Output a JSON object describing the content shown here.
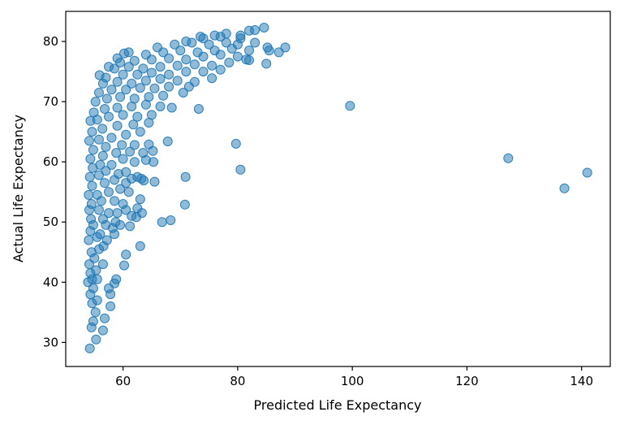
{
  "chart_data": {
    "type": "scatter",
    "title": "",
    "xlabel": "Predicted Life Expectancy",
    "ylabel": "Actual Life Expectancy",
    "xlim": [
      50,
      145
    ],
    "ylim": [
      26,
      85
    ],
    "x_ticks": [
      60,
      80,
      100,
      120,
      140
    ],
    "y_ticks": [
      30,
      40,
      50,
      60,
      70,
      80
    ],
    "grid": false,
    "legend": "none",
    "marker_color": "#1f77b4",
    "marker_alpha": 0.5,
    "points": [
      [
        54.2,
        29.0
      ],
      [
        55.3,
        30.5
      ],
      [
        54.5,
        32.5
      ],
      [
        56.5,
        32.0
      ],
      [
        54.8,
        33.5
      ],
      [
        56.8,
        34.0
      ],
      [
        55.2,
        35.0
      ],
      [
        57.8,
        36.0
      ],
      [
        54.6,
        36.5
      ],
      [
        55.5,
        37.0
      ],
      [
        54.3,
        38.0
      ],
      [
        57.8,
        38.0
      ],
      [
        54.8,
        39.0
      ],
      [
        57.5,
        39.0
      ],
      [
        53.9,
        40.0
      ],
      [
        54.6,
        40.5
      ],
      [
        55.5,
        40.5
      ],
      [
        58.8,
        40.5
      ],
      [
        58.5,
        39.8
      ],
      [
        54.3,
        41.5
      ],
      [
        55.3,
        42.0
      ],
      [
        60.2,
        42.8
      ],
      [
        54.1,
        43.0
      ],
      [
        55.0,
        44.0
      ],
      [
        56.5,
        43.0
      ],
      [
        60.5,
        44.6
      ],
      [
        54.5,
        45.0
      ],
      [
        55.8,
        45.5
      ],
      [
        56.6,
        46.0
      ],
      [
        63.0,
        46.0
      ],
      [
        54.0,
        47.0
      ],
      [
        55.5,
        47.5
      ],
      [
        57.2,
        47.0
      ],
      [
        54.3,
        48.5
      ],
      [
        56.0,
        48.0
      ],
      [
        58.5,
        48.0
      ],
      [
        58.2,
        49.0
      ],
      [
        54.8,
        49.5
      ],
      [
        57.0,
        49.5
      ],
      [
        59.5,
        49.5
      ],
      [
        61.2,
        49.3
      ],
      [
        54.4,
        50.5
      ],
      [
        56.5,
        50.5
      ],
      [
        58.7,
        50.0
      ],
      [
        62.3,
        50.8
      ],
      [
        66.8,
        50.0
      ],
      [
        68.3,
        50.3
      ],
      [
        54.1,
        52.0
      ],
      [
        55.8,
        52.0
      ],
      [
        57.5,
        51.5
      ],
      [
        59.0,
        51.5
      ],
      [
        60.5,
        52.0
      ],
      [
        61.5,
        51.0
      ],
      [
        63.3,
        51.5
      ],
      [
        54.5,
        53.0
      ],
      [
        56.2,
        53.5
      ],
      [
        58.5,
        53.5
      ],
      [
        60.0,
        53.0
      ],
      [
        62.5,
        52.3
      ],
      [
        70.8,
        52.9
      ],
      [
        54.0,
        54.5
      ],
      [
        55.5,
        54.5
      ],
      [
        57.5,
        55.0
      ],
      [
        59.5,
        55.5
      ],
      [
        61.0,
        55.0
      ],
      [
        63.0,
        53.8
      ],
      [
        54.6,
        56.0
      ],
      [
        56.8,
        56.5
      ],
      [
        58.5,
        57.0
      ],
      [
        60.5,
        56.5
      ],
      [
        62.5,
        57.5
      ],
      [
        65.5,
        56.7
      ],
      [
        54.2,
        57.5
      ],
      [
        55.8,
        57.8
      ],
      [
        57.0,
        58.5
      ],
      [
        59.2,
        58.0
      ],
      [
        60.5,
        58.3
      ],
      [
        61.5,
        57.2
      ],
      [
        63.2,
        57.2
      ],
      [
        63.6,
        56.9
      ],
      [
        54.7,
        59.0
      ],
      [
        56.0,
        59.5
      ],
      [
        58.0,
        59.5
      ],
      [
        60.0,
        60.5
      ],
      [
        62.0,
        60.0
      ],
      [
        64.0,
        60.3
      ],
      [
        65.3,
        60.0
      ],
      [
        70.9,
        57.5
      ],
      [
        80.5,
        58.7
      ],
      [
        54.3,
        60.5
      ],
      [
        56.5,
        61.0
      ],
      [
        58.8,
        61.5
      ],
      [
        61.2,
        61.7
      ],
      [
        63.5,
        61.5
      ],
      [
        65.2,
        61.8
      ],
      [
        54.8,
        62.0
      ],
      [
        57.0,
        62.5
      ],
      [
        59.8,
        62.8
      ],
      [
        62.0,
        62.8
      ],
      [
        64.5,
        62.9
      ],
      [
        67.8,
        63.4
      ],
      [
        79.7,
        63.0
      ],
      [
        54.1,
        63.5
      ],
      [
        55.8,
        63.7
      ],
      [
        58.0,
        64.0
      ],
      [
        60.5,
        64.5
      ],
      [
        63.0,
        65.0
      ],
      [
        54.6,
        65.0
      ],
      [
        56.4,
        65.5
      ],
      [
        59.0,
        66.0
      ],
      [
        61.8,
        66.2
      ],
      [
        64.5,
        66.5
      ],
      [
        54.3,
        66.8
      ],
      [
        55.5,
        67.0
      ],
      [
        57.5,
        67.5
      ],
      [
        60.0,
        67.8
      ],
      [
        62.5,
        67.5
      ],
      [
        65.0,
        67.8
      ],
      [
        54.9,
        68.2
      ],
      [
        56.8,
        68.8
      ],
      [
        59.0,
        69.0
      ],
      [
        61.5,
        69.2
      ],
      [
        64.0,
        69.5
      ],
      [
        66.5,
        69.2
      ],
      [
        68.5,
        69.0
      ],
      [
        73.2,
        68.8
      ],
      [
        99.6,
        69.3
      ],
      [
        55.2,
        70.0
      ],
      [
        57.2,
        70.5
      ],
      [
        59.5,
        70.8
      ],
      [
        62.0,
        70.5
      ],
      [
        64.5,
        70.8
      ],
      [
        67.0,
        71.0
      ],
      [
        70.5,
        71.5
      ],
      [
        55.8,
        71.5
      ],
      [
        58.0,
        72.0
      ],
      [
        60.5,
        72.0
      ],
      [
        63.0,
        72.3
      ],
      [
        65.5,
        72.2
      ],
      [
        68.0,
        72.5
      ],
      [
        71.5,
        72.5
      ],
      [
        56.5,
        73.0
      ],
      [
        59.0,
        73.3
      ],
      [
        61.5,
        73.0
      ],
      [
        64.0,
        73.5
      ],
      [
        66.5,
        73.8
      ],
      [
        69.5,
        73.5
      ],
      [
        72.5,
        73.3
      ],
      [
        75.5,
        73.9
      ],
      [
        57.0,
        74.0
      ],
      [
        60.0,
        74.5
      ],
      [
        62.5,
        74.5
      ],
      [
        65.0,
        74.8
      ],
      [
        68.0,
        74.5
      ],
      [
        71.0,
        75.0
      ],
      [
        74.0,
        75.0
      ],
      [
        77.0,
        75.3
      ],
      [
        55.9,
        74.4
      ],
      [
        58.5,
        75.5
      ],
      [
        61.0,
        75.8
      ],
      [
        63.5,
        75.5
      ],
      [
        66.5,
        75.8
      ],
      [
        69.5,
        76.0
      ],
      [
        72.5,
        76.2
      ],
      [
        75.5,
        76.0
      ],
      [
        78.5,
        76.5
      ],
      [
        81.5,
        77.0
      ],
      [
        85.0,
        76.3
      ],
      [
        57.5,
        75.8
      ],
      [
        59.5,
        76.5
      ],
      [
        62.0,
        76.8
      ],
      [
        65.0,
        77.0
      ],
      [
        68.0,
        77.2
      ],
      [
        71.0,
        77.0
      ],
      [
        74.0,
        77.5
      ],
      [
        77.0,
        77.8
      ],
      [
        80.0,
        77.5
      ],
      [
        82.0,
        76.9
      ],
      [
        59.0,
        77.2
      ],
      [
        60.2,
        78.0
      ],
      [
        61.0,
        78.2
      ],
      [
        64.0,
        77.8
      ],
      [
        67.0,
        78.2
      ],
      [
        70.0,
        78.5
      ],
      [
        73.0,
        78.2
      ],
      [
        76.0,
        78.5
      ],
      [
        79.0,
        78.8
      ],
      [
        82.0,
        78.5
      ],
      [
        85.5,
        78.5
      ],
      [
        87.2,
        78.2
      ],
      [
        66.0,
        79.0
      ],
      [
        69.0,
        79.5
      ],
      [
        72.0,
        79.8
      ],
      [
        75.0,
        79.5
      ],
      [
        78.0,
        79.8
      ],
      [
        80.0,
        79.5
      ],
      [
        83.0,
        79.8
      ],
      [
        85.2,
        79.0
      ],
      [
        88.3,
        79.0
      ],
      [
        71.0,
        80.0
      ],
      [
        74.0,
        80.5
      ],
      [
        77.0,
        80.8
      ],
      [
        80.5,
        80.5
      ],
      [
        73.5,
        80.8
      ],
      [
        76.0,
        81.0
      ],
      [
        78.0,
        81.3
      ],
      [
        80.5,
        81.0
      ],
      [
        82.0,
        81.8
      ],
      [
        83.0,
        81.9
      ],
      [
        84.6,
        82.3
      ],
      [
        127.2,
        60.6
      ],
      [
        137.0,
        55.6
      ],
      [
        141.0,
        58.2
      ]
    ]
  }
}
